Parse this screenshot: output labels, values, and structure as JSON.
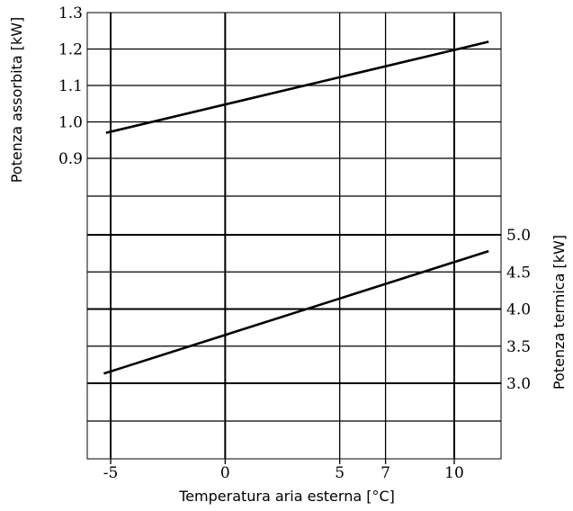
{
  "chart_data": {
    "type": "line",
    "xlabel": "Temperatura aria esterna [°C]",
    "x_ticks": [
      "-5",
      "0",
      "5",
      "7",
      "10"
    ],
    "x_range": [
      -6,
      12
    ],
    "top_panel": {
      "ylabel": "Potenza assorbita [kW]",
      "y_ticks": [
        "1.3",
        "1.2",
        "1.1",
        "1.0",
        "0.9"
      ],
      "y_range": [
        0.7,
        1.3
      ],
      "series": [
        {
          "x": [
            -5.2,
            11.5
          ],
          "y": [
            0.97,
            1.22
          ]
        }
      ]
    },
    "bottom_panel": {
      "ylabel": "Potenza termica [kW]",
      "y_ticks": [
        "5.0",
        "4.5",
        "4.0",
        "3.5",
        "3.0"
      ],
      "y_range": [
        2.0,
        5.0
      ],
      "series": [
        {
          "x": [
            -5.3,
            11.5
          ],
          "y": [
            3.13,
            4.78
          ]
        }
      ]
    },
    "grid": true
  }
}
